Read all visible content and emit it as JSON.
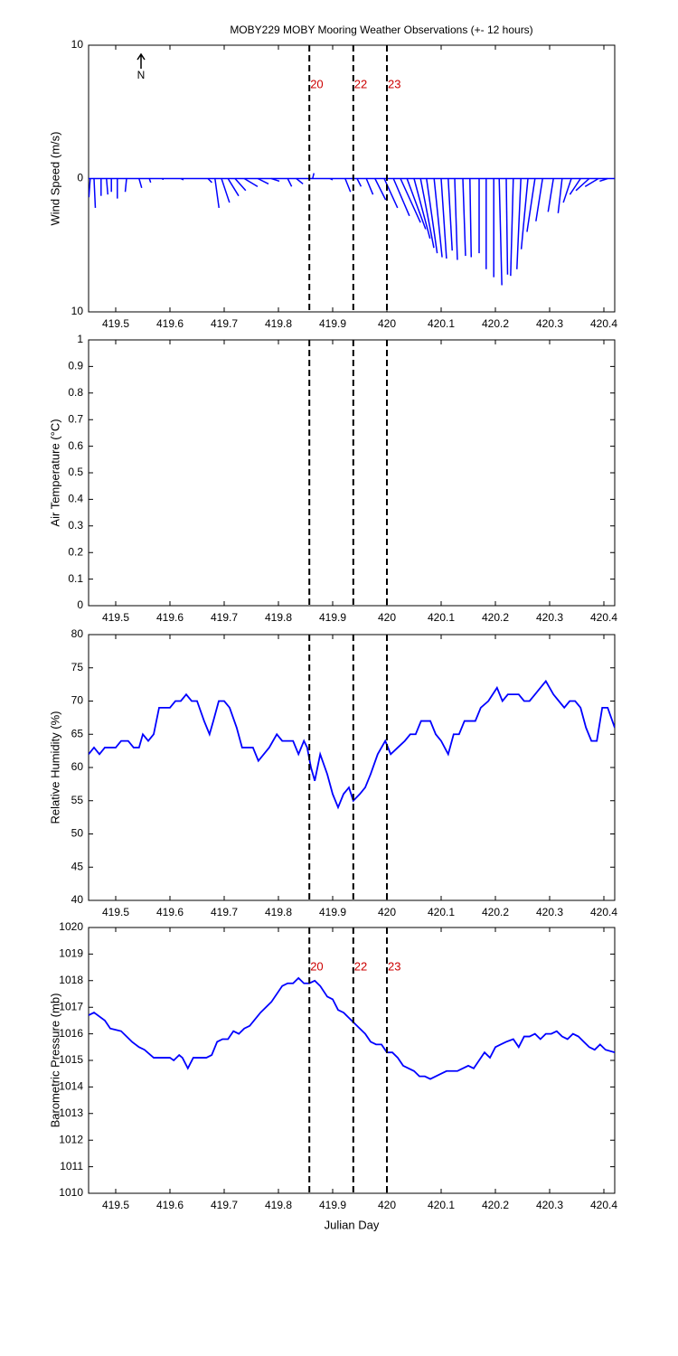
{
  "chart_data": [
    {
      "type": "stick",
      "title": "MOBY229 MOBY Mooring Weather Observations (+- 12 hours)",
      "ylabel": "Wind Speed (m/s)",
      "north_label": "N",
      "color": "#0000ff",
      "xlim": [
        419.45,
        420.42
      ],
      "xticks": [
        419.5,
        419.6,
        419.7,
        419.8,
        419.9,
        420,
        420.1,
        420.2,
        420.3,
        420.4
      ],
      "ylim": [
        -10,
        10
      ],
      "yticks": [
        {
          "value": -10,
          "label": "10"
        },
        0,
        10
      ],
      "events": [
        {
          "x": 419.857,
          "label": "20"
        },
        {
          "x": 419.938,
          "label": "22"
        },
        {
          "x": 420.0,
          "label": "23"
        }
      ],
      "x": [
        419.453,
        419.46,
        419.473,
        419.483,
        419.492,
        419.503,
        419.52,
        419.543,
        419.562,
        419.587,
        419.62,
        419.67,
        419.683,
        419.695,
        419.707,
        419.72,
        419.737,
        419.762,
        419.787,
        419.817,
        419.833,
        419.863,
        419.895,
        419.923,
        419.945,
        419.962,
        419.978,
        419.995,
        420.012,
        420.025,
        420.037,
        420.05,
        420.062,
        420.073,
        420.087,
        420.1,
        420.113,
        420.125,
        420.14,
        420.153,
        420.17,
        420.183,
        420.197,
        420.207,
        420.22,
        420.233,
        420.247,
        420.26,
        420.273,
        420.287,
        420.307,
        420.323,
        420.34,
        420.357,
        420.373,
        420.39,
        420.407
      ],
      "u": [
        -0.1,
        0.1,
        0,
        0.1,
        0,
        0,
        -0.1,
        0.2,
        0.1,
        0,
        0.2,
        0.3,
        0.3,
        0.6,
        0.8,
        0.8,
        1.0,
        0.8,
        0.6,
        0.3,
        0.5,
        0.1,
        0.2,
        0.4,
        0.3,
        0.5,
        0.8,
        1.0,
        1.2,
        1.5,
        1.4,
        1.2,
        1.0,
        0.8,
        0.6,
        0.4,
        0.3,
        0.2,
        0.2,
        0.1,
        0,
        0,
        0,
        0.2,
        0.1,
        -0.2,
        -0.3,
        -0.5,
        -0.6,
        -0.5,
        -0.4,
        -0.3,
        -0.6,
        -0.8,
        -1.0,
        -1.0,
        -0.6
      ],
      "v": [
        -1.4,
        -2.2,
        -1.3,
        -1.2,
        -1.0,
        -1.5,
        -1.0,
        -0.7,
        -0.3,
        -0.1,
        -0.1,
        -0.3,
        -2.2,
        -1.8,
        -1.3,
        -0.9,
        -0.6,
        -0.4,
        -0.2,
        -0.6,
        -0.4,
        0.4,
        -0.1,
        -1.0,
        -0.6,
        -1.2,
        -1.6,
        -2.2,
        -2.8,
        -3.3,
        -3.8,
        -4.5,
        -5.2,
        -5.6,
        -5.9,
        -6.0,
        -5.4,
        -6.1,
        -5.8,
        -5.9,
        -5.6,
        -6.8,
        -7.4,
        -8.0,
        -7.2,
        -7.3,
        -6.8,
        -5.3,
        -4.0,
        -3.2,
        -2.5,
        -2.6,
        -1.8,
        -1.2,
        -0.9,
        -0.6,
        -0.2
      ]
    },
    {
      "type": "line",
      "ylabel": "Air Temperature (°C)",
      "xlim": [
        419.45,
        420.42
      ],
      "xticks": [
        419.5,
        419.6,
        419.7,
        419.8,
        419.9,
        420,
        420.1,
        420.2,
        420.3,
        420.4
      ],
      "ylim": [
        0,
        1
      ],
      "yticks": [
        0,
        0.1,
        0.2,
        0.3,
        0.4,
        0.5,
        0.6,
        0.7,
        0.8,
        0.9,
        1
      ],
      "events": [
        {
          "x": 419.857
        },
        {
          "x": 419.938
        },
        {
          "x": 420.0
        }
      ]
    },
    {
      "type": "line",
      "ylabel": "Relative Humidity (%)",
      "color": "#0000ff",
      "xlim": [
        419.45,
        420.42
      ],
      "xticks": [
        419.5,
        419.6,
        419.7,
        419.8,
        419.9,
        420,
        420.1,
        420.2,
        420.3,
        420.4
      ],
      "ylim": [
        40,
        80
      ],
      "yticks": [
        40,
        45,
        50,
        55,
        60,
        65,
        70,
        75,
        80
      ],
      "events": [
        {
          "x": 419.857
        },
        {
          "x": 419.938
        },
        {
          "x": 420.0
        }
      ],
      "x": [
        419.45,
        419.46,
        419.47,
        419.48,
        419.5,
        419.51,
        419.523,
        419.533,
        419.543,
        419.55,
        419.56,
        419.57,
        419.58,
        419.6,
        419.61,
        419.62,
        419.63,
        419.64,
        419.65,
        419.663,
        419.673,
        419.68,
        419.69,
        419.7,
        419.71,
        419.723,
        419.733,
        419.753,
        419.763,
        419.773,
        419.783,
        419.797,
        419.807,
        419.827,
        419.837,
        419.847,
        419.853,
        419.86,
        419.867,
        419.877,
        419.89,
        419.9,
        419.91,
        419.92,
        419.93,
        419.938,
        419.95,
        419.96,
        419.97,
        419.983,
        419.997,
        420.007,
        420.02,
        420.033,
        420.043,
        420.053,
        420.063,
        420.08,
        420.09,
        420.1,
        420.113,
        420.123,
        420.133,
        420.143,
        420.163,
        420.173,
        420.187,
        420.203,
        420.213,
        420.223,
        420.243,
        420.253,
        420.263,
        420.273,
        420.293,
        420.307,
        420.317,
        420.327,
        420.337,
        420.347,
        420.357,
        420.367,
        420.377,
        420.387,
        420.397,
        420.407,
        420.42
      ],
      "values": [
        62,
        63,
        62,
        63,
        63,
        64,
        64,
        63,
        63,
        65,
        64,
        65,
        69,
        69,
        70,
        70,
        71,
        70,
        70,
        67,
        65,
        67,
        70,
        70,
        69,
        66,
        63,
        63,
        61,
        62,
        63,
        65,
        64,
        64,
        62,
        64,
        63,
        60,
        58,
        62,
        59,
        56,
        54,
        56,
        57,
        55,
        56,
        57,
        59,
        62,
        64,
        62,
        63,
        64,
        65,
        65,
        67,
        67,
        65,
        64,
        62,
        65,
        65,
        67,
        67,
        69,
        70,
        72,
        70,
        71,
        71,
        70,
        70,
        71,
        73,
        71,
        70,
        69,
        70,
        70,
        69,
        66,
        64,
        64,
        69,
        69,
        66
      ]
    },
    {
      "type": "line",
      "ylabel": "Barometric Pressure (mb)",
      "xlabel": "Julian Day",
      "color": "#0000ff",
      "xlim": [
        419.45,
        420.42
      ],
      "xticks": [
        419.5,
        419.6,
        419.7,
        419.8,
        419.9,
        420,
        420.1,
        420.2,
        420.3,
        420.4
      ],
      "ylim": [
        1010,
        1020
      ],
      "yticks": [
        1010,
        1011,
        1012,
        1013,
        1014,
        1015,
        1016,
        1017,
        1018,
        1019,
        1020
      ],
      "events": [
        {
          "x": 419.857,
          "label": "20"
        },
        {
          "x": 419.938,
          "label": "22"
        },
        {
          "x": 420.0,
          "label": "23"
        }
      ],
      "x": [
        419.45,
        419.46,
        419.48,
        419.49,
        419.51,
        419.53,
        419.543,
        419.553,
        419.57,
        419.6,
        419.607,
        419.617,
        419.623,
        419.633,
        419.643,
        419.667,
        419.677,
        419.687,
        419.697,
        419.707,
        419.717,
        419.727,
        419.737,
        419.747,
        419.767,
        419.787,
        419.807,
        419.817,
        419.827,
        419.837,
        419.847,
        419.857,
        419.867,
        419.877,
        419.89,
        419.9,
        419.91,
        419.92,
        419.93,
        419.94,
        419.95,
        419.96,
        419.97,
        419.98,
        419.99,
        420.0,
        420.01,
        420.02,
        420.03,
        420.05,
        420.06,
        420.07,
        420.08,
        420.1,
        420.11,
        420.13,
        420.14,
        420.15,
        420.16,
        420.18,
        420.19,
        420.2,
        420.21,
        420.22,
        420.233,
        420.243,
        420.253,
        420.263,
        420.273,
        420.283,
        420.293,
        420.303,
        420.313,
        420.323,
        420.333,
        420.343,
        420.353,
        420.363,
        420.373,
        420.383,
        420.393,
        420.403,
        420.42
      ],
      "values": [
        1016.7,
        1016.8,
        1016.5,
        1016.2,
        1016.1,
        1015.7,
        1015.5,
        1015.4,
        1015.1,
        1015.1,
        1015.0,
        1015.2,
        1015.1,
        1014.7,
        1015.1,
        1015.1,
        1015.2,
        1015.7,
        1015.8,
        1015.8,
        1016.1,
        1016.0,
        1016.2,
        1016.3,
        1016.8,
        1017.2,
        1017.8,
        1017.9,
        1017.9,
        1018.1,
        1017.9,
        1017.9,
        1018.0,
        1017.8,
        1017.4,
        1017.3,
        1016.9,
        1016.8,
        1016.6,
        1016.4,
        1016.2,
        1016.0,
        1015.7,
        1015.6,
        1015.6,
        1015.3,
        1015.3,
        1015.1,
        1014.8,
        1014.6,
        1014.4,
        1014.4,
        1014.3,
        1014.5,
        1014.6,
        1014.6,
        1014.7,
        1014.8,
        1014.7,
        1015.3,
        1015.1,
        1015.5,
        1015.6,
        1015.7,
        1015.8,
        1015.5,
        1015.9,
        1015.9,
        1016.0,
        1015.8,
        1016.0,
        1016.0,
        1016.1,
        1015.9,
        1015.8,
        1016.0,
        1015.9,
        1015.7,
        1015.5,
        1015.4,
        1015.6,
        1015.4,
        1015.3
      ]
    }
  ]
}
